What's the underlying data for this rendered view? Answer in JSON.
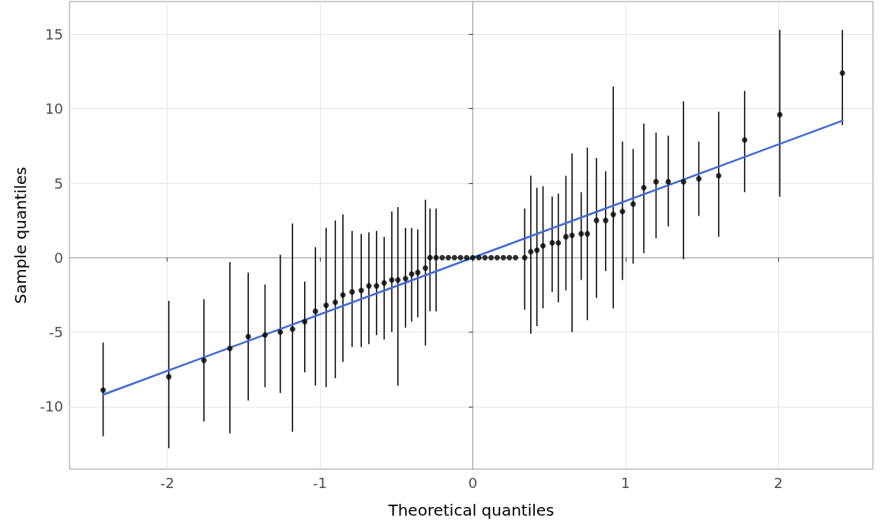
{
  "chart_data": {
    "type": "scatter",
    "xlabel": "Theoretical quantiles",
    "ylabel": "Sample quantiles",
    "xlim": [
      -2.64,
      2.62
    ],
    "ylim": [
      -14.2,
      17.2
    ],
    "xticks": [
      -2,
      -1,
      0,
      1,
      2
    ],
    "yticks": [
      -10,
      -5,
      0,
      5,
      10,
      15
    ],
    "grid": true,
    "marker": "circle",
    "series": [
      {
        "color": "#000000",
        "x": [
          -2.42,
          -1.99,
          -1.76,
          -1.59,
          -1.47,
          -1.36,
          -1.26,
          -1.18,
          -1.1,
          -1.03,
          -0.96,
          -0.9,
          -0.85,
          -0.79,
          -0.73,
          -0.68,
          -0.63,
          -0.58,
          -0.53,
          -0.49,
          -0.44,
          -0.4,
          -0.36,
          -0.31,
          -0.28,
          -0.24,
          -0.2,
          -0.16,
          -0.12,
          -0.08,
          -0.04,
          0,
          0.04,
          0.08,
          0.12,
          0.16,
          0.2,
          0.24,
          0.28,
          0.34,
          0.38,
          0.42,
          0.46,
          0.52,
          0.56,
          0.61,
          0.65,
          0.71,
          0.75,
          0.81,
          0.87,
          0.92,
          0.98,
          1.05,
          1.12,
          1.2,
          1.28,
          1.38,
          1.48,
          1.61,
          1.78,
          2.01,
          2.42
        ],
        "values": [
          -8.9,
          -8.0,
          -6.9,
          -6.1,
          -5.3,
          -5.2,
          -5.0,
          -4.8,
          -4.3,
          -3.6,
          -3.2,
          -3.0,
          -2.5,
          -2.3,
          -2.2,
          -1.9,
          -1.9,
          -1.7,
          -1.5,
          -1.5,
          -1.4,
          -1.1,
          -1.0,
          -0.7,
          0,
          0,
          0,
          0,
          0,
          0,
          0,
          0,
          0,
          0,
          0,
          0,
          0,
          0,
          0,
          0.0,
          0.4,
          0.5,
          0.8,
          1.0,
          1.0,
          1.4,
          1.5,
          1.6,
          1.6,
          2.5,
          2.5,
          2.9,
          3.1,
          3.6,
          4.7,
          5.1,
          5.1,
          5.1,
          5.3,
          5.5,
          7.9,
          9.6,
          12.4
        ],
        "errors": [
          [
            -12.0,
            -5.7
          ],
          [
            -12.8,
            -2.9
          ],
          [
            -11.0,
            -2.8
          ],
          [
            -11.8,
            -0.3
          ],
          [
            -9.6,
            -1.0
          ],
          [
            -8.7,
            -1.8
          ],
          [
            -9.1,
            0.2
          ],
          [
            -11.7,
            2.3
          ],
          [
            -7.7,
            -1.6
          ],
          [
            -8.6,
            0.7
          ],
          [
            -8.7,
            2.0
          ],
          [
            -8.1,
            2.5
          ],
          [
            -7.0,
            2.9
          ],
          [
            -6.0,
            1.8
          ],
          [
            -6.0,
            1.6
          ],
          [
            -5.8,
            1.7
          ],
          [
            -5.2,
            1.8
          ],
          [
            -5.5,
            1.4
          ],
          [
            -5.0,
            3.1
          ],
          [
            -8.6,
            3.4
          ],
          [
            -4.7,
            2.0
          ],
          [
            -4.3,
            2.0
          ],
          [
            -4.0,
            1.9
          ],
          [
            -5.9,
            3.9
          ],
          [
            -3.6,
            3.3
          ],
          [
            -3.6,
            3.3
          ],
          null,
          null,
          null,
          null,
          null,
          null,
          null,
          null,
          null,
          null,
          null,
          null,
          null,
          [
            -3.5,
            3.3
          ],
          [
            -5.1,
            5.5
          ],
          [
            -4.6,
            4.7
          ],
          [
            -3.4,
            4.8
          ],
          [
            -2.3,
            4.1
          ],
          [
            -3.0,
            4.3
          ],
          [
            -2.2,
            5.5
          ],
          [
            -5.0,
            7.0
          ],
          [
            -1.5,
            4.4
          ],
          [
            -4.2,
            7.4
          ],
          [
            -2.7,
            6.7
          ],
          [
            -0.9,
            5.8
          ],
          [
            -3.4,
            11.5
          ],
          [
            -1.5,
            7.8
          ],
          [
            -0.4,
            7.3
          ],
          [
            0.3,
            9.0
          ],
          [
            1.3,
            8.4
          ],
          [
            2.1,
            8.2
          ],
          [
            -0.1,
            10.5
          ],
          [
            2.8,
            7.8
          ],
          [
            1.4,
            9.8
          ],
          [
            4.4,
            11.2
          ],
          [
            4.1,
            15.3
          ],
          [
            8.9,
            15.3
          ]
        ]
      },
      {
        "type": "line",
        "color": "#4169d4",
        "marker": "none",
        "x": [
          -2.42,
          2.42
        ],
        "values": [
          -9.2,
          9.2
        ]
      }
    ]
  }
}
